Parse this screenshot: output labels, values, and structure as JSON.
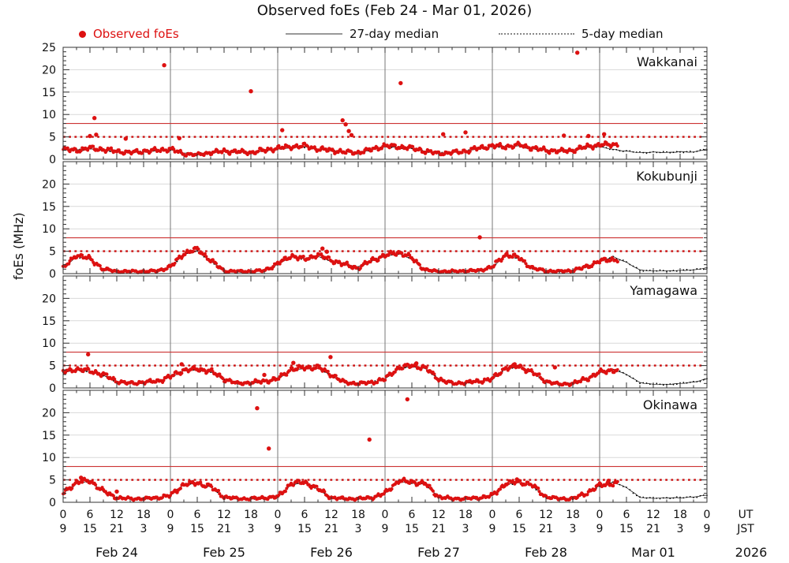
{
  "title": "Observed foEs (Feb 24 - Mar 01, 2026)",
  "ylabel": "foEs (MHz)",
  "legend": {
    "observed_label": "Observed foEs",
    "median27_label": "27-day median",
    "median5_label": "5-day median"
  },
  "axis": {
    "ut_label": "UT",
    "jst_label": "JST",
    "year_label": "2026",
    "day_labels": [
      "Feb 24",
      "Feb 25",
      "Feb 26",
      "Feb 27",
      "Feb 28",
      "Mar 01"
    ],
    "ut_ticks_per_day": [
      "0",
      "6",
      "12",
      "18"
    ],
    "jst_ticks_per_day": [
      "9",
      "15",
      "21",
      "3"
    ],
    "ut_last_tick": "0",
    "jst_last_tick": "9"
  },
  "colors": {
    "observed": "#dd1111",
    "threshold_solid": "#cc3333",
    "threshold_dotted": "#cc1111",
    "median": "#111111",
    "grid": "#d9d9d9",
    "day_line": "#777777",
    "frame": "#333333"
  },
  "chart_data": {
    "type": "scatter",
    "title": "Observed foEs (Feb 24 - Mar 01, 2026)",
    "ylabel": "foEs (MHz)",
    "x_unit": "hours since Feb 24 00:00 UT",
    "x_range": [
      0,
      144
    ],
    "x_major_tick_hours": 6,
    "x_minor_tick_hours": 3,
    "ylim": [
      0,
      25
    ],
    "y_major_ticks": [
      0,
      5,
      10,
      15,
      20,
      25
    ],
    "threshold_solid_mhz": 8,
    "threshold_dotted_mhz": 5,
    "observed_end_hour": 124,
    "sample_step_hours": 3,
    "stations": [
      {
        "name": "Wakkanai",
        "y_tick_labels": [
          "0",
          "5",
          "10",
          "15",
          "20",
          "25"
        ],
        "observed": [
          2.2,
          2.0,
          2.5,
          2.2,
          1.8,
          1.5,
          1.8,
          2.0,
          2.3,
          1.2,
          1.0,
          1.5,
          1.8,
          1.7,
          1.5,
          2.0,
          2.5,
          2.8,
          3.0,
          2.3,
          2.0,
          1.6,
          1.5,
          2.2,
          3.0,
          2.8,
          2.5,
          1.8,
          1.3,
          1.5,
          1.8,
          2.5,
          3.0,
          2.8,
          3.2,
          2.5,
          2.0,
          1.8,
          2.0,
          2.8,
          3.2,
          3.3
        ],
        "median": [
          2.0,
          2.1,
          2.3,
          2.0,
          1.7,
          1.5,
          1.7,
          1.9,
          2.1,
          1.4,
          1.2,
          1.5,
          1.7,
          1.6,
          1.5,
          1.9,
          2.3,
          2.6,
          2.8,
          2.2,
          1.9,
          1.6,
          1.6,
          2.1,
          2.8,
          2.7,
          2.4,
          1.8,
          1.4,
          1.5,
          1.8,
          2.4,
          2.9,
          2.8,
          3.0,
          2.4,
          2.0,
          1.8,
          2.0,
          2.6,
          2.8,
          2.2,
          1.8,
          1.5,
          1.6,
          1.5,
          1.7,
          1.6,
          2.3
        ],
        "outliers": [
          [
            6,
            5.2
          ],
          [
            7,
            9.2
          ],
          [
            7.4,
            5.5
          ],
          [
            14,
            4.6
          ],
          [
            22.6,
            21.0
          ],
          [
            26,
            4.7
          ],
          [
            42,
            15.2
          ],
          [
            49,
            6.5
          ],
          [
            62.5,
            8.7
          ],
          [
            63.2,
            7.8
          ],
          [
            63.9,
            6.3
          ],
          [
            64.5,
            5.4
          ],
          [
            75.5,
            17.0
          ],
          [
            85,
            5.6
          ],
          [
            90,
            6.0
          ],
          [
            112,
            5.3
          ],
          [
            115,
            23.8
          ],
          [
            117.5,
            5.2
          ],
          [
            121,
            5.6
          ]
        ]
      },
      {
        "name": "Kokubunji",
        "y_tick_labels": [
          "0",
          "5",
          "10",
          "15",
          "20"
        ],
        "observed": [
          1.2,
          4.2,
          3.3,
          1.0,
          0.5,
          0.5,
          0.5,
          0.6,
          1.5,
          4.5,
          5.5,
          3.0,
          0.6,
          0.5,
          0.5,
          0.7,
          2.2,
          4.0,
          3.2,
          4.2,
          3.0,
          2.0,
          1.2,
          3.0,
          4.0,
          4.8,
          3.5,
          0.8,
          0.5,
          0.5,
          0.6,
          0.7,
          1.5,
          4.3,
          3.5,
          1.2,
          0.6,
          0.5,
          0.7,
          1.5,
          2.8,
          3.2
        ],
        "median": [
          1.2,
          3.8,
          3.2,
          1.0,
          0.5,
          0.5,
          0.5,
          0.6,
          1.5,
          4.3,
          5.0,
          2.8,
          0.6,
          0.5,
          0.5,
          0.7,
          2.0,
          3.8,
          3.3,
          3.8,
          2.8,
          2.0,
          1.5,
          2.8,
          3.8,
          4.5,
          3.2,
          0.8,
          0.5,
          0.5,
          0.6,
          0.7,
          1.5,
          4.0,
          3.3,
          1.1,
          0.6,
          0.5,
          0.7,
          1.4,
          2.6,
          3.8,
          2.5,
          0.8,
          0.6,
          0.6,
          0.7,
          0.8,
          1.3
        ],
        "outliers": [
          [
            58,
            5.6
          ],
          [
            59,
            4.9
          ],
          [
            93.2,
            8.1
          ]
        ]
      },
      {
        "name": "Yamagawa",
        "y_tick_labels": [
          "0",
          "5",
          "10",
          "15",
          "20"
        ],
        "observed": [
          3.6,
          4.2,
          3.8,
          3.0,
          1.5,
          1.0,
          1.3,
          1.5,
          2.5,
          4.0,
          4.2,
          3.8,
          2.0,
          1.0,
          1.2,
          1.5,
          2.0,
          4.2,
          4.5,
          4.6,
          3.0,
          1.2,
          1.0,
          1.2,
          2.0,
          4.5,
          5.0,
          4.5,
          2.0,
          1.0,
          1.2,
          1.5,
          2.0,
          4.5,
          4.8,
          3.5,
          1.5,
          0.8,
          1.0,
          2.0,
          3.5,
          4.0
        ],
        "median": [
          3.5,
          4.0,
          3.6,
          2.8,
          1.4,
          1.0,
          1.2,
          1.5,
          2.4,
          3.8,
          4.0,
          3.6,
          1.9,
          1.0,
          1.1,
          1.4,
          2.0,
          4.0,
          4.3,
          4.4,
          2.8,
          1.2,
          1.0,
          1.2,
          2.0,
          4.3,
          4.8,
          4.3,
          1.9,
          1.0,
          1.1,
          1.4,
          2.0,
          4.3,
          4.6,
          3.4,
          1.4,
          0.8,
          1.0,
          1.9,
          3.4,
          4.2,
          3.0,
          1.2,
          0.8,
          0.8,
          1.0,
          1.3,
          2.0
        ],
        "outliers": [
          [
            5.6,
            7.5
          ],
          [
            26.5,
            5.3
          ],
          [
            45,
            2.9
          ],
          [
            51.5,
            5.6
          ],
          [
            59.8,
            6.9
          ],
          [
            79,
            5.5
          ],
          [
            101,
            5.3
          ],
          [
            110,
            4.6
          ]
        ]
      },
      {
        "name": "Okinawa",
        "y_tick_labels": [
          "0",
          "5",
          "10",
          "15",
          "20"
        ],
        "observed": [
          2.0,
          4.5,
          4.8,
          2.5,
          1.0,
          0.8,
          0.8,
          1.0,
          1.5,
          4.0,
          4.3,
          3.5,
          1.2,
          0.8,
          0.8,
          1.0,
          1.2,
          4.2,
          4.5,
          3.0,
          1.0,
          0.8,
          0.8,
          1.0,
          2.0,
          4.8,
          4.5,
          4.2,
          1.2,
          0.8,
          0.8,
          1.0,
          1.5,
          4.2,
          4.6,
          3.8,
          1.2,
          0.8,
          0.8,
          2.0,
          3.8,
          4.2
        ],
        "median": [
          2.0,
          4.3,
          4.6,
          2.4,
          1.0,
          0.8,
          0.8,
          1.0,
          1.5,
          3.9,
          4.2,
          3.4,
          1.1,
          0.8,
          0.8,
          1.0,
          1.2,
          4.0,
          4.3,
          2.9,
          1.0,
          0.8,
          0.8,
          1.0,
          2.0,
          4.6,
          4.3,
          4.0,
          1.1,
          0.8,
          0.8,
          1.0,
          1.5,
          4.0,
          4.4,
          3.6,
          1.1,
          0.8,
          0.8,
          1.9,
          3.7,
          4.5,
          3.3,
          1.1,
          0.9,
          1.0,
          1.0,
          1.2,
          1.6
        ],
        "outliers": [
          [
            4,
            5.5
          ],
          [
            12,
            2.4
          ],
          [
            43.4,
            21.0
          ],
          [
            46,
            12.0
          ],
          [
            68.5,
            14.0
          ],
          [
            77,
            23.0
          ],
          [
            101.5,
            5.1
          ],
          [
            122,
            4.8
          ]
        ]
      }
    ]
  }
}
